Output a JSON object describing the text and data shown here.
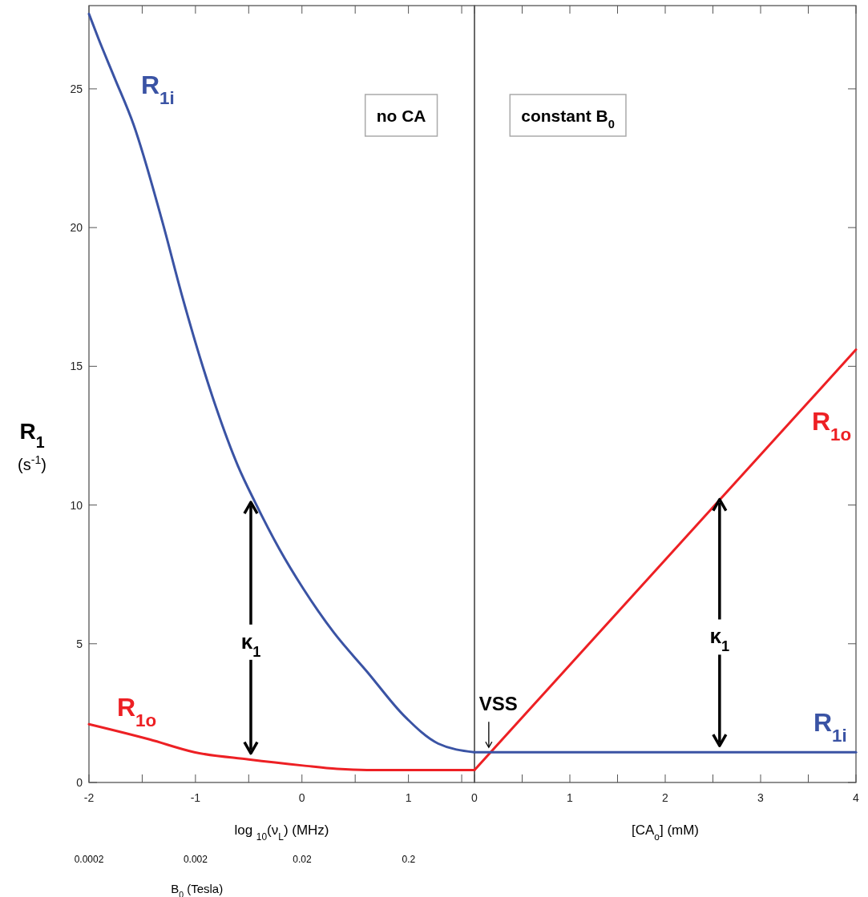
{
  "chart_data": [
    {
      "type": "line",
      "xlabel": "log $_{10}$(ν$_{L}$) (MHz)",
      "ylabel": "R$_{1}$ (s$^{-1}$)",
      "x2label": "B$_{0}$ (Tesla)",
      "xlim": [
        -2,
        1.62
      ],
      "xticks": [
        -2,
        {
          "value": -1.5,
          "label": null
        },
        -1,
        {
          "value": -0.5,
          "label": null
        },
        0,
        {
          "value": 0.5,
          "label": null
        },
        1,
        {
          "value": 1.5,
          "label": null
        }
      ],
      "x2lim": [
        0.0002,
        0.83
      ],
      "x2ticks": [
        0.0002,
        0.002,
        0.02,
        0.2
      ],
      "log": "x2",
      "ylim": [
        0,
        28
      ],
      "yticks": [
        0,
        5,
        10,
        15,
        20,
        25
      ],
      "series": [
        {
          "name": "R$_{1i}$",
          "color": "#3a53a4",
          "x": [
            -2,
            -1.91,
            -1.76,
            -1.58,
            -1.31,
            -1.13,
            -0.84,
            -0.6,
            -0.44,
            -0.21,
            0.01,
            0.3,
            0.61,
            0.96,
            1.28,
            1.62
          ],
          "values": [
            27.7,
            26.8,
            25.4,
            23.7,
            20.2,
            17.6,
            13.9,
            11.4,
            10.1,
            8.4,
            7.0,
            5.4,
            4.0,
            2.4,
            1.4,
            1.09
          ]
        },
        {
          "name": "R$_{1o}$",
          "color": "#ed2024",
          "x": [
            -2,
            -1.43,
            -1.01,
            -0.5,
            0.01,
            0.33,
            0.61,
            1.62
          ],
          "values": [
            2.1,
            1.55,
            1.09,
            0.83,
            0.61,
            0.49,
            0.45,
            0.45
          ]
        }
      ],
      "annotations": [
        "no CA",
        {
          "text": "κ$_{1}$",
          "x": -0.48,
          "y": 10.1
        }
      ]
    },
    {
      "type": "line",
      "xlabel": "[CA$_{o}$] (mM)",
      "tick_labels": "x",
      "xlim": [
        0,
        4
      ],
      "xticks": [
        0,
        {
          "value": 0.5,
          "label": null
        },
        1,
        {
          "value": 1.5,
          "label": null
        },
        2,
        {
          "value": 2.5,
          "label": null
        },
        3,
        {
          "value": 3.5,
          "label": null
        },
        4
      ],
      "ylim": [
        0,
        28
      ],
      "yticks": [
        0,
        5,
        10,
        15,
        20,
        25
      ],
      "series": [
        {
          "name": "R$_{1o}$",
          "color": "#ed2024",
          "x": [
            0,
            4
          ],
          "values": [
            0.45,
            15.6
          ]
        },
        {
          "name": "R$_{1i}$",
          "color": "#3a53a4",
          "x": [
            0,
            4
          ],
          "values": [
            1.09,
            1.09
          ]
        }
      ],
      "annotations": [
        "constant B$_{0}$",
        {
          "text": "VSS",
          "x": 0.15,
          "y": 1.09
        },
        {
          "text": "κ$_{1}$",
          "x": 2.57,
          "y": 10.2
        }
      ]
    }
  ]
}
